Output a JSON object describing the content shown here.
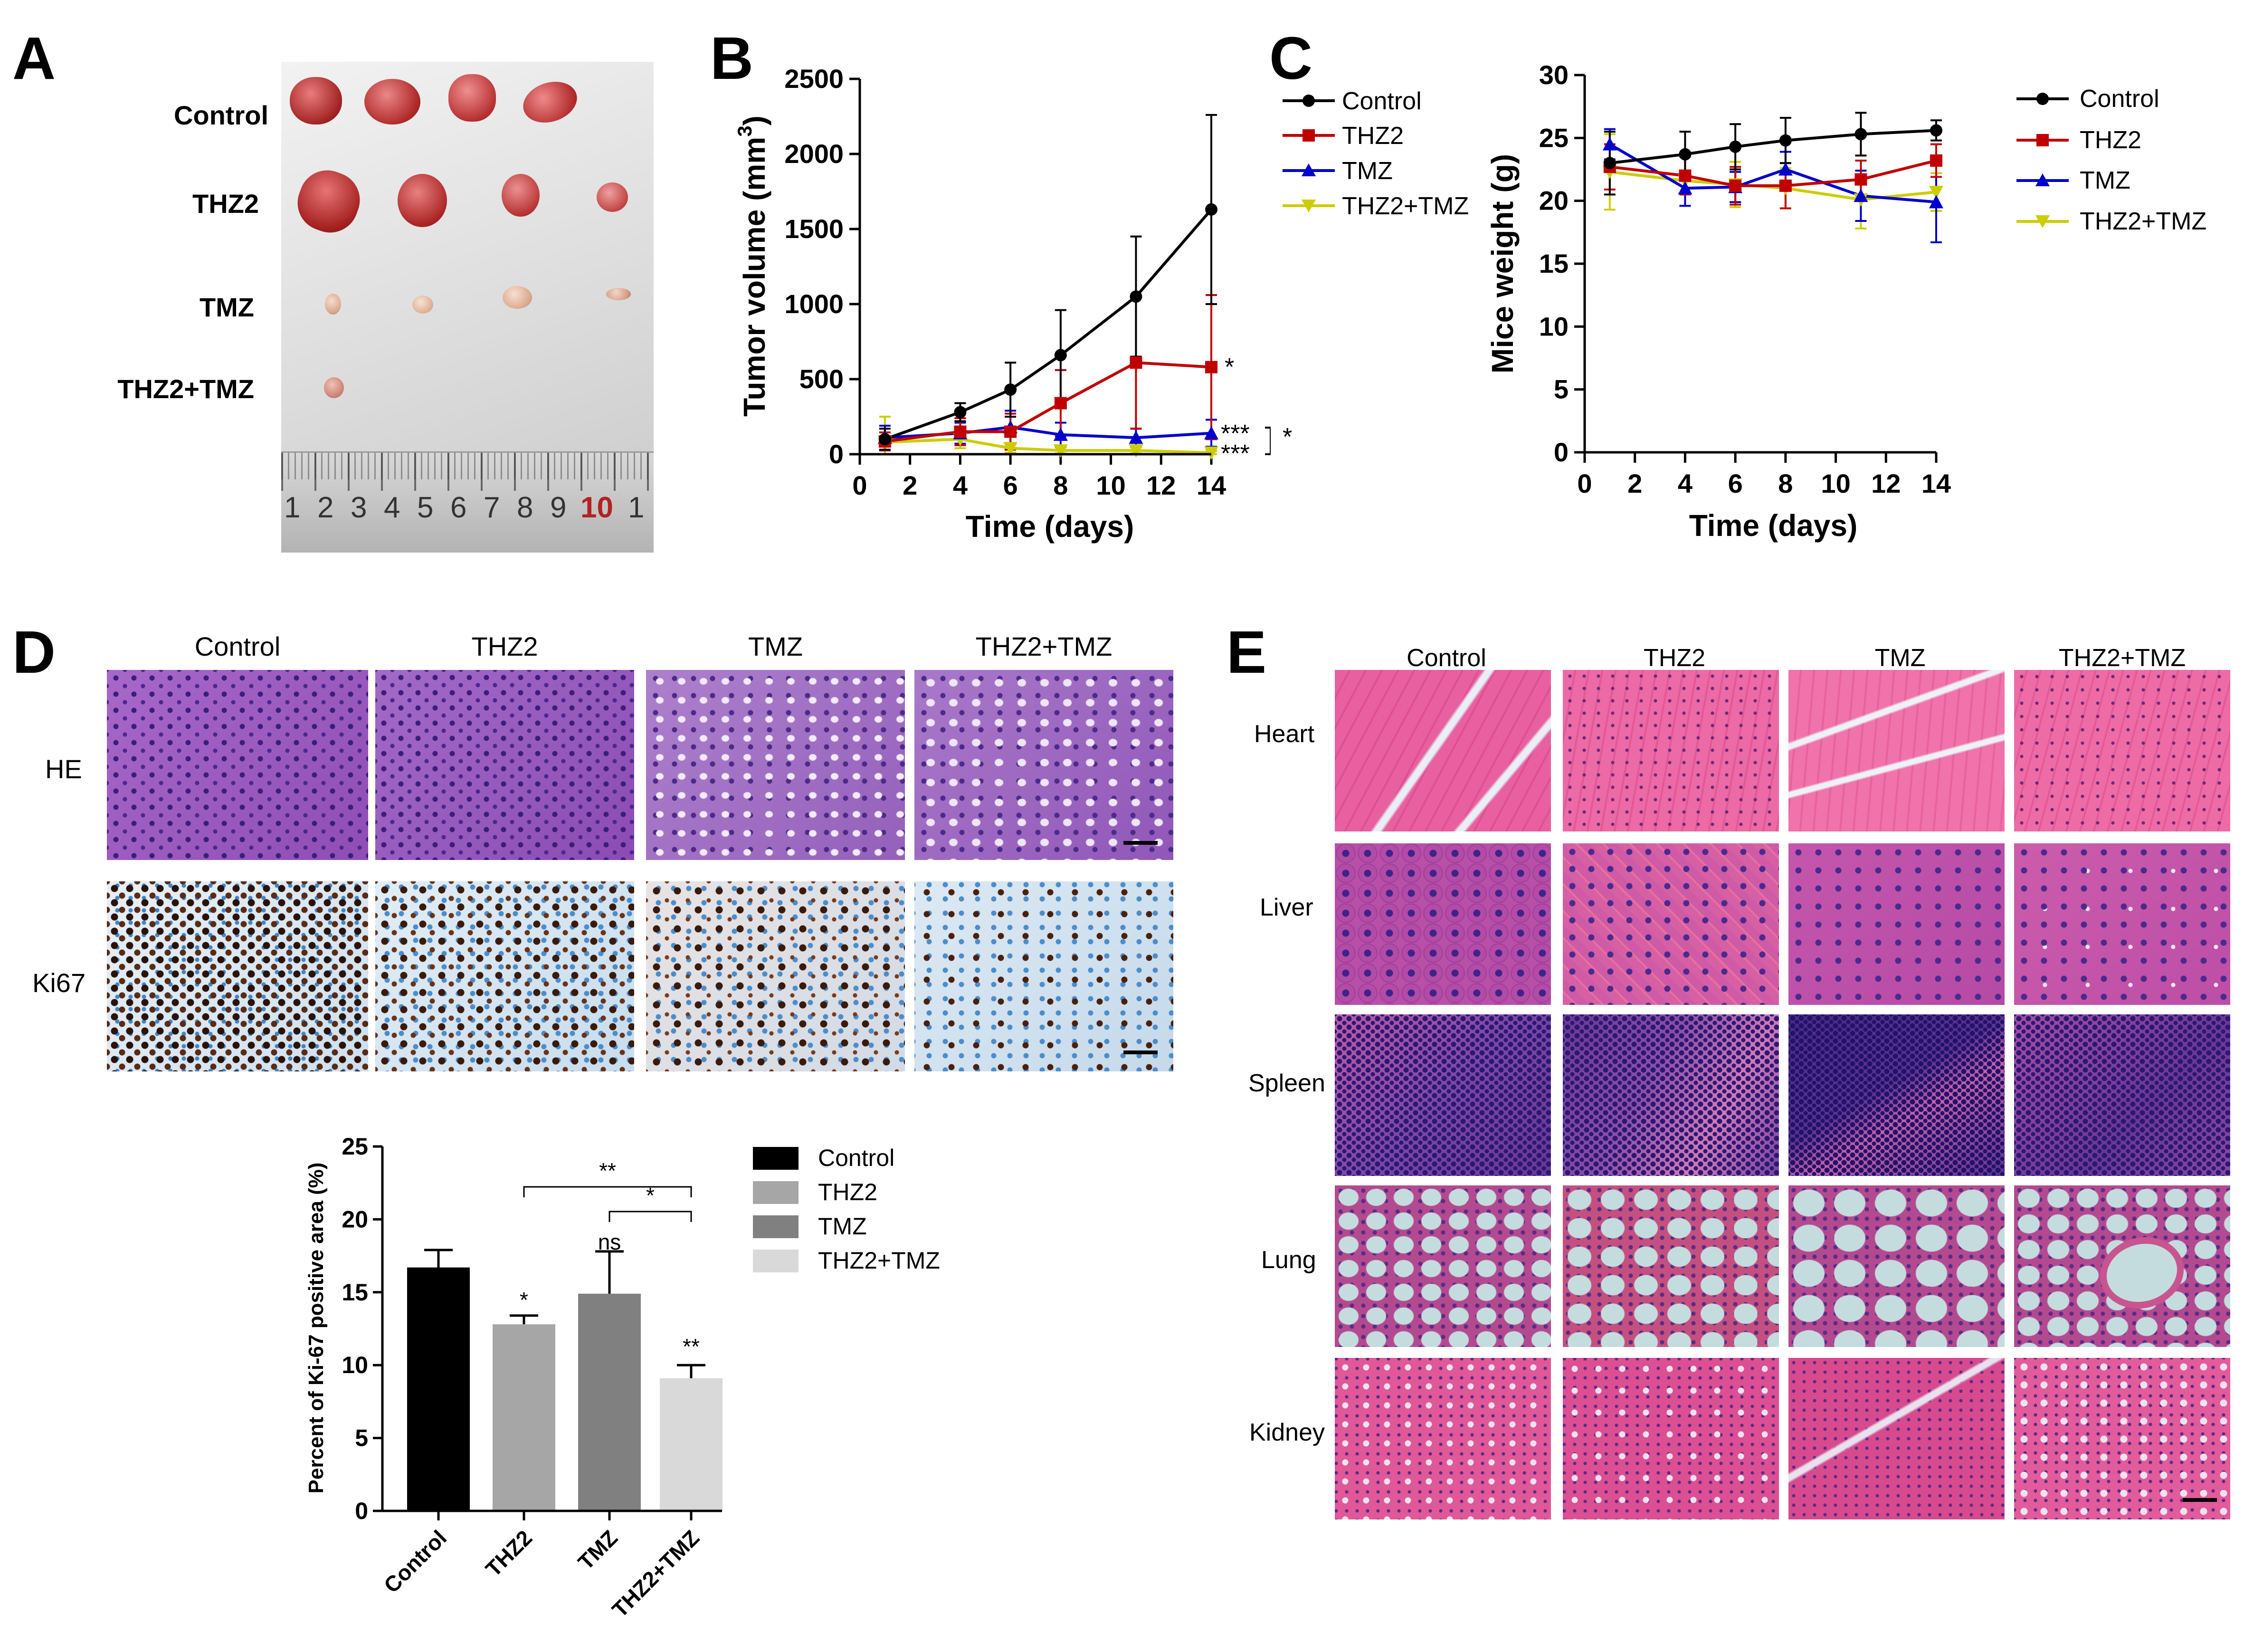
{
  "panel_letters": [
    "A",
    "B",
    "C",
    "D",
    "E"
  ],
  "panel_a": {
    "row_labels": [
      "Control",
      "THZ2",
      "TMZ",
      "THZ2+TMZ"
    ],
    "ruler_numbers": [
      "1",
      "2",
      "3",
      "4",
      "5",
      "6",
      "7",
      "8",
      "9",
      "10",
      "1"
    ]
  },
  "legend_groups": [
    "Control",
    "THZ2",
    "TMZ",
    "THZ2+TMZ"
  ],
  "colors": {
    "control": "#000000",
    "thz2": "#c00000",
    "tmz": "#0000cc",
    "combo": "#cccc00",
    "bar_control": "#000000",
    "bar_thz2": "#a6a6a6",
    "bar_tmz": "#808080",
    "bar_combo": "#d9d9d9",
    "he_stain": "#9a52b8",
    "ki67_stain": "#b9d3e6",
    "tissue_pink": "#e35a9c",
    "spleen_purple": "#6a3796",
    "lung_bg": "#c5dcdf"
  },
  "chart_data": [
    {
      "id": "B",
      "type": "line",
      "xlabel": "Time (days)",
      "ylabel": "Tumor volume (mm3)",
      "ylim": [
        0,
        2500
      ],
      "xlim": [
        0,
        14
      ],
      "xticks": [
        0,
        2,
        4,
        6,
        8,
        10,
        12,
        14
      ],
      "yticks": [
        0,
        500,
        1000,
        1500,
        2000,
        2500
      ],
      "x": [
        1,
        4,
        6,
        8,
        11,
        14
      ],
      "series": [
        {
          "name": "Control",
          "values": [
            100,
            280,
            430,
            660,
            1050,
            1630
          ],
          "err": [
            70,
            60,
            180,
            300,
            400,
            630
          ]
        },
        {
          "name": "THZ2",
          "values": [
            85,
            150,
            150,
            340,
            610,
            580
          ],
          "err": [
            60,
            90,
            120,
            220,
            440,
            480
          ]
        },
        {
          "name": "TMZ",
          "values": [
            110,
            140,
            180,
            130,
            110,
            140
          ],
          "err": [
            80,
            70,
            110,
            80,
            60,
            90
          ]
        },
        {
          "name": "THZ2+TMZ",
          "values": [
            80,
            100,
            40,
            25,
            25,
            10
          ],
          "err": [
            170,
            60,
            30,
            20,
            20,
            10
          ]
        }
      ],
      "annotations": [
        "*",
        "***",
        "***",
        "*"
      ],
      "legend_position": "right"
    },
    {
      "id": "C",
      "type": "line",
      "xlabel": "Time (days)",
      "ylabel": "Mice weight (g)",
      "ylim": [
        0,
        30
      ],
      "xlim": [
        0,
        14
      ],
      "xticks": [
        0,
        2,
        4,
        6,
        8,
        10,
        12,
        14
      ],
      "yticks": [
        0,
        5,
        10,
        15,
        20,
        25,
        30
      ],
      "x": [
        1,
        4,
        6,
        8,
        11,
        14
      ],
      "series": [
        {
          "name": "Control",
          "values": [
            23.0,
            23.7,
            24.3,
            24.8,
            25.3,
            25.6
          ],
          "err": [
            2.5,
            1.8,
            1.8,
            1.8,
            1.7,
            0.8
          ]
        },
        {
          "name": "THZ2",
          "values": [
            22.7,
            22.0,
            21.2,
            21.2,
            21.7,
            23.2
          ],
          "err": [
            1.8,
            1.5,
            1.5,
            1.8,
            1.5,
            1.3
          ]
        },
        {
          "name": "TMZ",
          "values": [
            24.5,
            21.0,
            21.1,
            22.5,
            20.4,
            19.9
          ],
          "err": [
            1.2,
            1.4,
            1.2,
            1.4,
            2.0,
            3.2
          ]
        },
        {
          "name": "THZ2+TMZ",
          "values": [
            22.3,
            21.6,
            21.3,
            21.0,
            20.1,
            20.7
          ],
          "err": [
            3.0,
            2.0,
            1.8,
            1.6,
            2.3,
            1.5
          ]
        }
      ],
      "legend_position": "right"
    },
    {
      "id": "D-bar",
      "type": "bar",
      "categories": [
        "Control",
        "THZ2",
        "TMZ",
        "THZ2+TMZ"
      ],
      "values": [
        16.7,
        12.8,
        14.9,
        9.1
      ],
      "err": [
        1.2,
        0.6,
        2.9,
        0.9
      ],
      "ylabel": "Percent of Ki-67 positive area (%)",
      "ylim": [
        0,
        25
      ],
      "yticks": [
        0,
        5,
        10,
        15,
        20,
        25
      ],
      "bar_annotations": [
        "",
        "*",
        "ns",
        "**"
      ],
      "brackets": [
        {
          "from": "THZ2",
          "to": "THZ2+TMZ",
          "label": "**"
        },
        {
          "from": "TMZ",
          "to": "THZ2+TMZ",
          "label": "*"
        }
      ],
      "legend_position": "right"
    }
  ],
  "panel_d": {
    "column_labels": [
      "Control",
      "THZ2",
      "TMZ",
      "THZ2+TMZ"
    ],
    "row_labels": [
      "HE",
      "Ki67"
    ]
  },
  "panel_e": {
    "column_labels": [
      "Control",
      "THZ2",
      "TMZ",
      "THZ2+TMZ"
    ],
    "row_labels": [
      "Heart",
      "Liver",
      "Spleen",
      "Lung",
      "Kidney"
    ]
  }
}
